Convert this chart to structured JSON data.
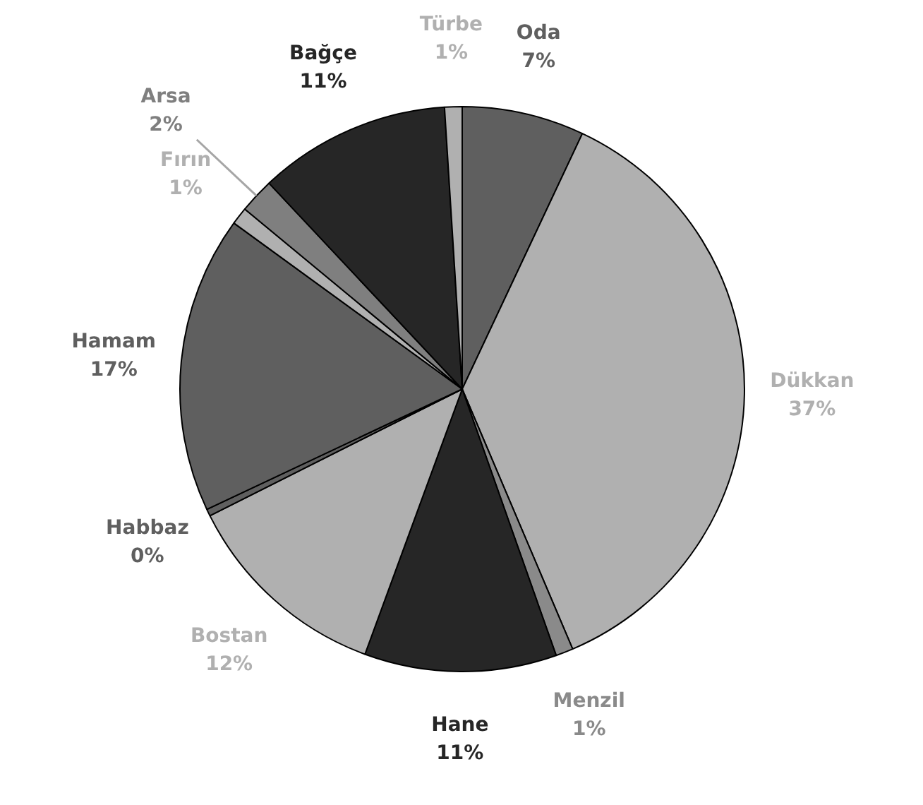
{
  "chart_data": {
    "type": "pie",
    "categories": [
      "Oda",
      "Dükkan",
      "Menzil",
      "Hane",
      "Bostan",
      "Habbaz",
      "Hamam",
      "Fırın",
      "Arsa",
      "Bağçe",
      "Türbe"
    ],
    "values": [
      7,
      36.6,
      1,
      11,
      12,
      0.4,
      17,
      1,
      2,
      11,
      1
    ],
    "value_labels": [
      "7%",
      "37%",
      "1%",
      "11%",
      "12%",
      "0%",
      "17%",
      "1%",
      "2%",
      "11%",
      "1%"
    ],
    "colors": [
      "#5f5f5f",
      "#b0b0b0",
      "#8a8a8a",
      "#262626",
      "#b0b0b0",
      "#5f5f5f",
      "#5f5f5f",
      "#b0b0b0",
      "#7f7f7f",
      "#262626",
      "#b0b0b0"
    ]
  }
}
